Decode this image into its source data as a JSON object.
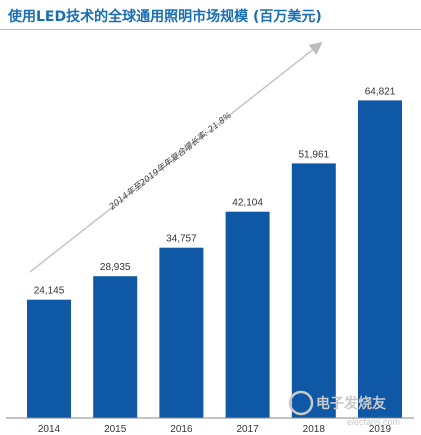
{
  "chart_data": {
    "type": "bar",
    "title": "使用LED技术的全球通用照明市场规模 (百万美元)",
    "categories": [
      "2014",
      "2015",
      "2016",
      "2017",
      "2018",
      "2019"
    ],
    "values": [
      24145,
      28935,
      34757,
      42104,
      51961,
      64821
    ],
    "value_labels": [
      "24,145",
      "28,935",
      "34,757",
      "42,104",
      "51,961",
      "64,821"
    ],
    "annotation": "2014年至2019年年复合增长率: 21.8%",
    "ylim": [
      0,
      70000
    ],
    "grid": false,
    "bar_color": "#0f58a6"
  },
  "watermark": "电子发烧友",
  "watermark_url": "elecfans.com"
}
